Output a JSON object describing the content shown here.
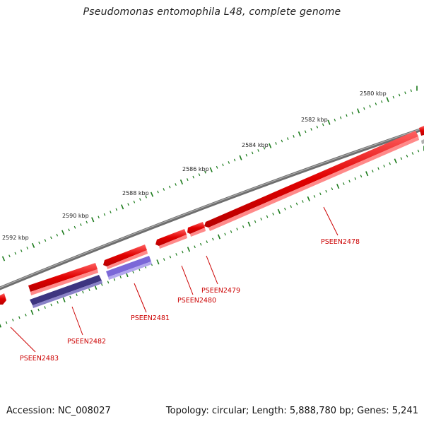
{
  "title": "Pseudomonas entomophila L48, complete genome",
  "footer": {
    "accession": "Accession: NC_008027",
    "summary": "Topology: circular; Length: 5,888,780 bp; Genes: 5,241"
  },
  "colors": {
    "forward_gene": "#e00000",
    "reverse_gene_dark": "#3d3580",
    "reverse_gene_light": "#7b68d8",
    "backbone": "#808080",
    "ticks": "#1a7a1a",
    "label": "#cc0000"
  },
  "ruler_labels": [
    "2580 kbp",
    "2582 kbp",
    "2584 kbp",
    "2586 kbp",
    "2588 kbp",
    "2590 kbp",
    "2592 kbp"
  ],
  "gene_labels": [
    "PSEEN2478",
    "PSEEN2479",
    "PSEEN2480",
    "PSEEN2481",
    "PSEEN2482",
    "PSEEN2483"
  ]
}
